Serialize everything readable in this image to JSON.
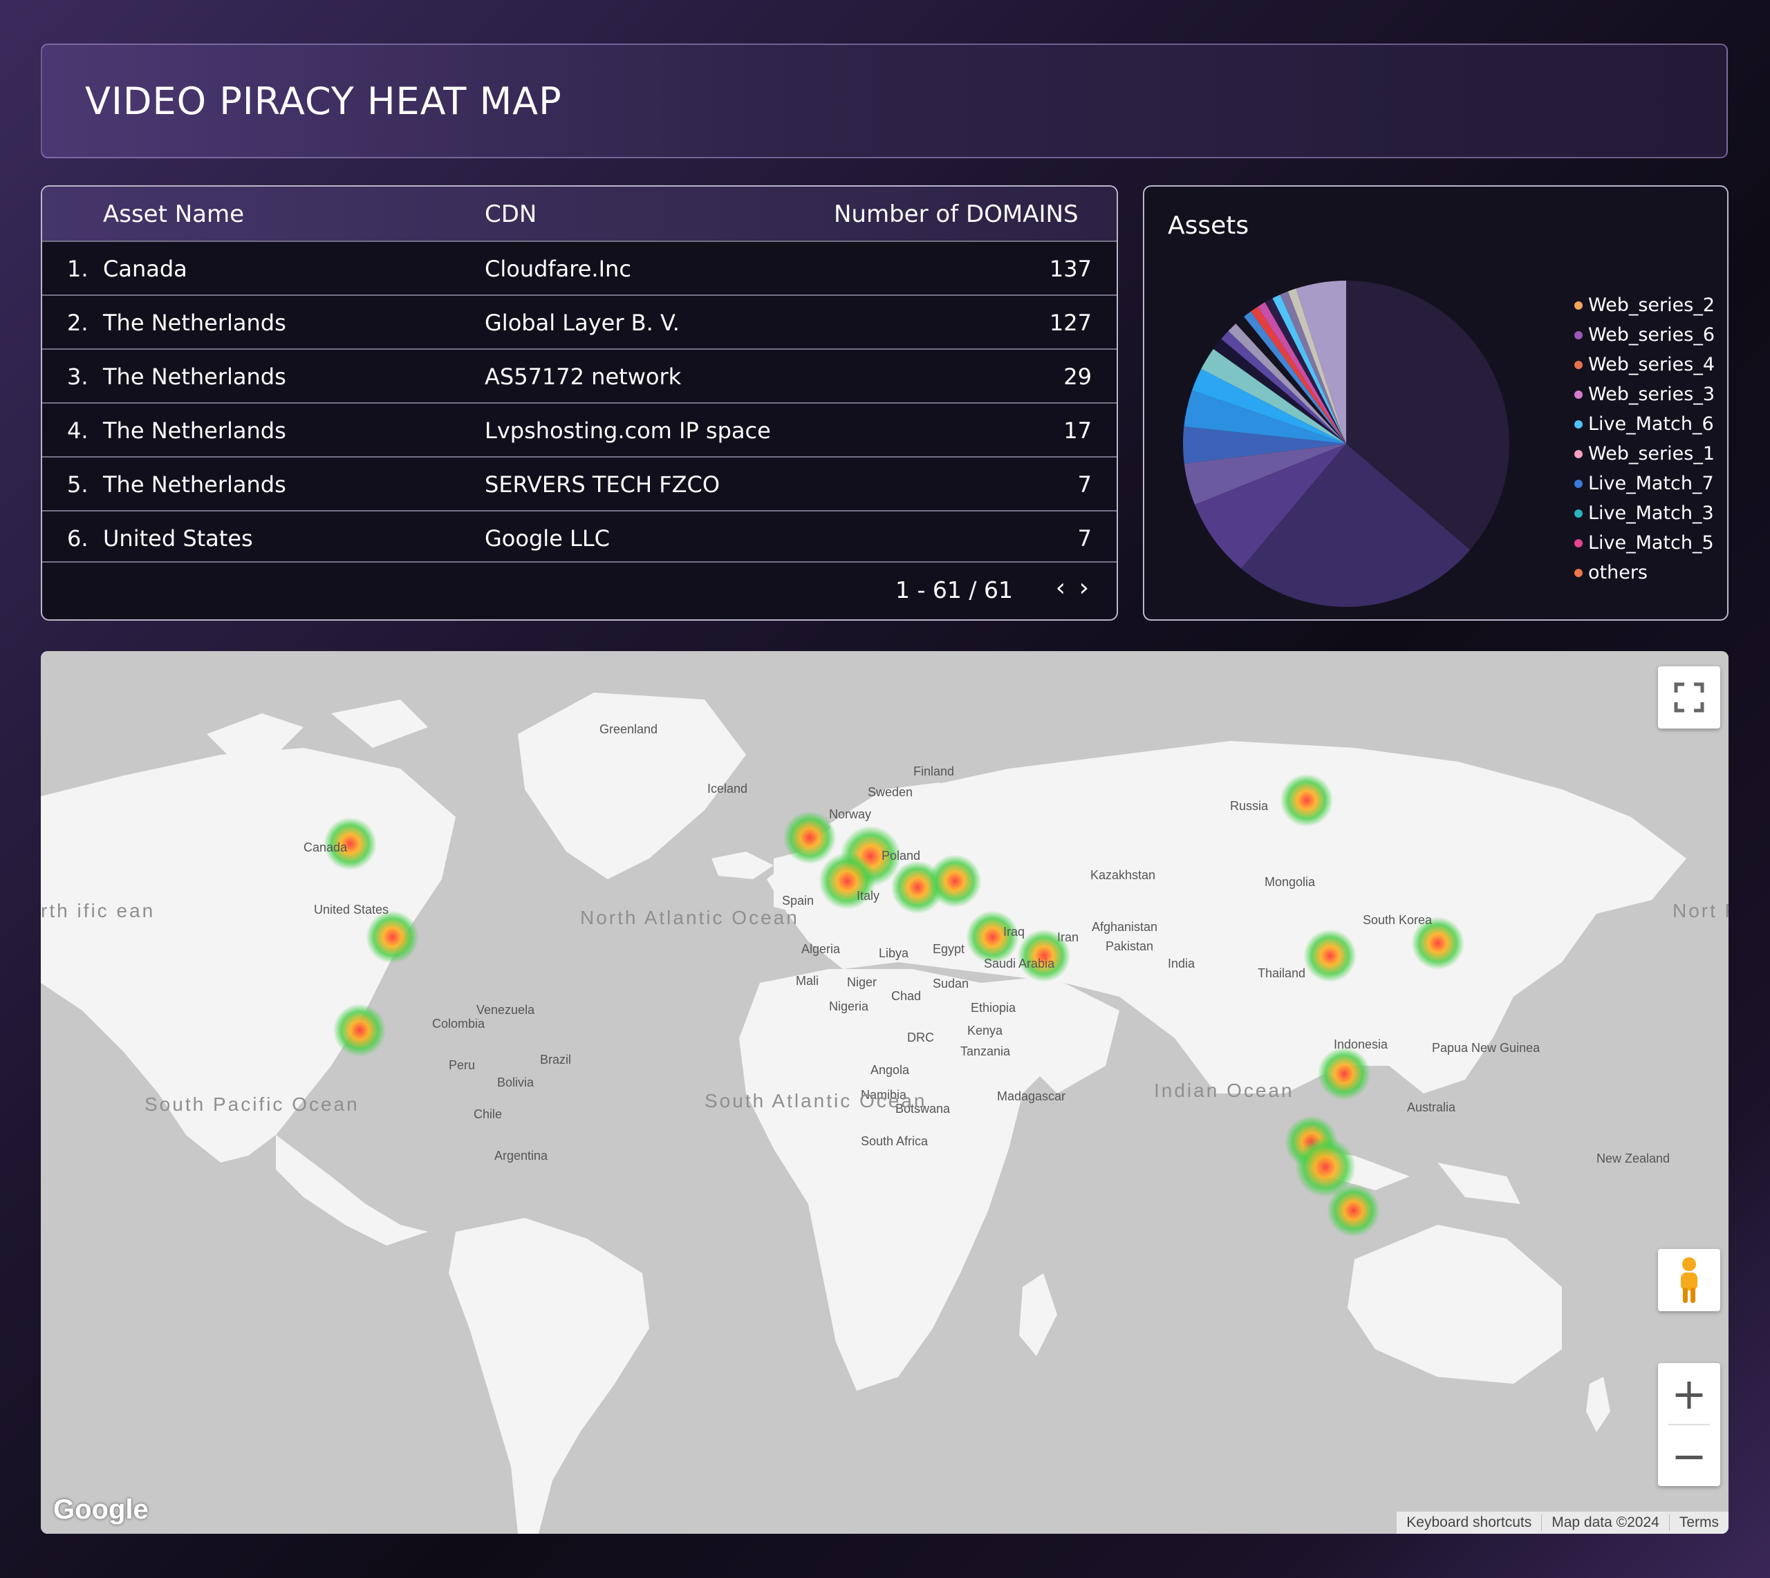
{
  "header": {
    "title": "VIDEO PIRACY HEAT MAP"
  },
  "table": {
    "columns": {
      "asset": "Asset Name",
      "cdn": "CDN",
      "domains": "Number of DOMAINS"
    },
    "rows": [
      {
        "idx": "1.",
        "asset": "Canada",
        "cdn": "Cloudfare.Inc",
        "domains": "137"
      },
      {
        "idx": "2.",
        "asset": "The Netherlands",
        "cdn": "Global Layer B. V.",
        "domains": "127"
      },
      {
        "idx": "3.",
        "asset": "The Netherlands",
        "cdn": "AS57172 network",
        "domains": "29"
      },
      {
        "idx": "4.",
        "asset": "The Netherlands",
        "cdn": "Lvpshosting.com IP space",
        "domains": "17"
      },
      {
        "idx": "5.",
        "asset": "The Netherlands",
        "cdn": "SERVERS TECH FZCO",
        "domains": "7"
      },
      {
        "idx": "6.",
        "asset": "United States",
        "cdn": "Google LLC",
        "domains": "7"
      }
    ],
    "pager": {
      "range": "1 - 61 / 61",
      "prev_icon": "chevron-left-icon",
      "next_icon": "chevron-right-icon"
    }
  },
  "assets_chart": {
    "title": "Assets",
    "legend": [
      {
        "label": "Web_series_2",
        "color": "#f2a65a"
      },
      {
        "label": "Web_series_6",
        "color": "#9b59b6"
      },
      {
        "label": "Web_series_4",
        "color": "#e5734a"
      },
      {
        "label": "Web_series_3",
        "color": "#d87bd0"
      },
      {
        "label": "Live_Match_6",
        "color": "#4fc3f7"
      },
      {
        "label": "Web_series_1",
        "color": "#f4a0c0"
      },
      {
        "label": "Live_Match_7",
        "color": "#3a7bd5"
      },
      {
        "label": "Live_Match_3",
        "color": "#2bb3c0"
      },
      {
        "label": "Live_Match_5",
        "color": "#e84393"
      },
      {
        "label": "others",
        "color": "#f07848"
      }
    ]
  },
  "chart_data": {
    "type": "pie",
    "title": "Assets",
    "slices": [
      {
        "value": 35.0,
        "color": "#261e3a"
      },
      {
        "value": 24.0,
        "color": "#3b2d66"
      },
      {
        "value": 7.5,
        "color": "#533d8a"
      },
      {
        "value": 4.0,
        "color": "#6c5aa0"
      },
      {
        "value": 3.5,
        "color": "#3c63b8"
      },
      {
        "value": 3.5,
        "color": "#2d8fe0"
      },
      {
        "value": 2.2,
        "color": "#2aa6f2"
      },
      {
        "value": 2.2,
        "color": "#7ec4c4"
      },
      {
        "value": 1.2,
        "color": "#1b1535"
      },
      {
        "value": 1.0,
        "color": "#5a47a0"
      },
      {
        "value": 1.0,
        "color": "#9d96b4"
      },
      {
        "value": 1.0,
        "color": "#15121f"
      },
      {
        "value": 0.8,
        "color": "#3f86d6"
      },
      {
        "value": 0.8,
        "color": "#e24040"
      },
      {
        "value": 0.8,
        "color": "#c64fa8"
      },
      {
        "value": 0.8,
        "color": "#2a1c46"
      },
      {
        "value": 0.8,
        "color": "#4fc3f7"
      },
      {
        "value": 0.8,
        "color": "#7e74a2"
      },
      {
        "value": 0.8,
        "color": "#c7c4b8"
      },
      {
        "value": 4.8,
        "color": "#a89bc8"
      }
    ]
  },
  "map": {
    "labels": {
      "greenland": "Greenland",
      "iceland": "Iceland",
      "finland": "Finland",
      "sweden": "Sweden",
      "norway": "Norway",
      "poland": "Poland",
      "russia": "Russia",
      "kazakhstan": "Kazakhstan",
      "mongolia": "Mongolia",
      "canada": "Canada",
      "united_states": "United States",
      "spain": "Spain",
      "italy": "Italy",
      "iraq": "Iraq",
      "iran": "Iran",
      "afghanistan": "Afghanistan",
      "pakistan": "Pakistan",
      "india": "India",
      "thailand": "Thailand",
      "south_korea": "South Korea",
      "algeria": "Algeria",
      "libya": "Libya",
      "egypt": "Egypt",
      "saudi_arabia": "Saudi Arabia",
      "mali": "Mali",
      "niger": "Niger",
      "chad": "Chad",
      "sudan": "Sudan",
      "nigeria": "Nigeria",
      "ethiopia": "Ethiopia",
      "drc": "DRC",
      "kenya": "Kenya",
      "tanzania": "Tanzania",
      "angola": "Angola",
      "namibia": "Namibia",
      "botswana": "Botswana",
      "madagascar": "Madagascar",
      "south_africa": "South Africa",
      "venezuela": "Venezuela",
      "colombia": "Colombia",
      "peru": "Peru",
      "brazil": "Brazil",
      "bolivia": "Bolivia",
      "chile": "Chile",
      "argentina": "Argentina",
      "papua_new_guinea": "Papua New Guinea",
      "australia": "Australia",
      "new_zealand": "New Zealand",
      "indonesia": "Indonesia",
      "north_atlantic": "North Atlantic Ocean",
      "south_atlantic": "South Atlantic Ocean",
      "indian_ocean": "Indian Ocean",
      "south_pacific": "South Pacific Ocean",
      "north_pacific_left": "rth ific ean",
      "north_pacific_right": "Nort Pacif Oce"
    },
    "hotspots": [
      {
        "place": "Canada",
        "lon": -104,
        "lat": 53,
        "intensity": 0.6
      },
      {
        "place": "United States",
        "lon": -95,
        "lat": 38,
        "intensity": 0.6
      },
      {
        "place": "Mexico",
        "lon": -102,
        "lat": 23,
        "intensity": 0.6
      },
      {
        "place": "Ireland/UK",
        "lon": -6,
        "lat": 54,
        "intensity": 0.6
      },
      {
        "place": "Netherlands/Germany",
        "lon": 7,
        "lat": 51,
        "intensity": 1.0
      },
      {
        "place": "France",
        "lon": 2,
        "lat": 47,
        "intensity": 0.8
      },
      {
        "place": "Austria/Hungary",
        "lon": 17,
        "lat": 46,
        "intensity": 0.6
      },
      {
        "place": "Romania",
        "lon": 25,
        "lat": 47,
        "intensity": 0.6
      },
      {
        "place": "Turkey",
        "lon": 33,
        "lat": 38,
        "intensity": 0.6
      },
      {
        "place": "Iraq",
        "lon": 44,
        "lat": 35,
        "intensity": 0.6
      },
      {
        "place": "Russia",
        "lon": 100,
        "lat": 60,
        "intensity": 0.6
      },
      {
        "place": "China",
        "lon": 105,
        "lat": 35,
        "intensity": 0.6
      },
      {
        "place": "South Korea",
        "lon": 128,
        "lat": 37,
        "intensity": 0.6
      },
      {
        "place": "Vietnam",
        "lon": 108,
        "lat": 16,
        "intensity": 0.6
      },
      {
        "place": "Malaysia",
        "lon": 101,
        "lat": 5,
        "intensity": 0.6
      },
      {
        "place": "Singapore",
        "lon": 104,
        "lat": 1,
        "intensity": 1.0
      },
      {
        "place": "Indonesia",
        "lon": 110,
        "lat": -6,
        "intensity": 0.6
      }
    ],
    "controls": {
      "fullscreen_icon": "fullscreen-icon",
      "pegman_icon": "pegman-icon",
      "zoom_in": "+",
      "zoom_out": "−"
    },
    "logo": "Google",
    "attribution": {
      "shortcuts": "Keyboard shortcuts",
      "data": "Map data ©2024",
      "terms": "Terms"
    }
  }
}
